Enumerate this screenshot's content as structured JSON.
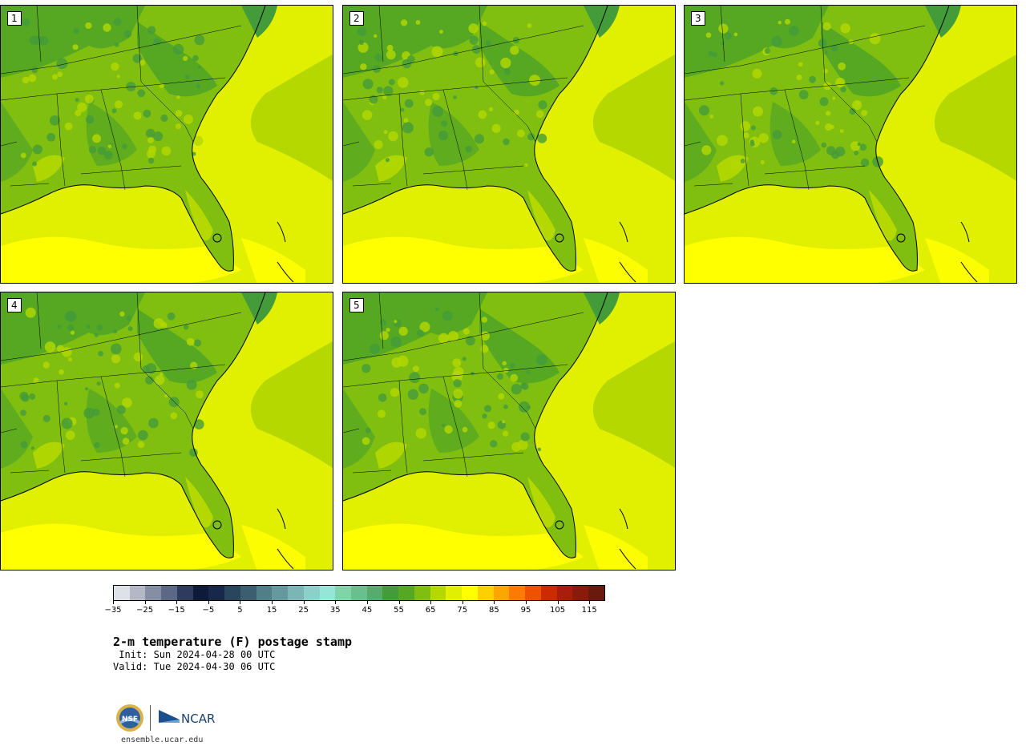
{
  "panels": [
    {
      "label": "1"
    },
    {
      "label": "2"
    },
    {
      "label": "3"
    },
    {
      "label": "4"
    },
    {
      "label": "5"
    }
  ],
  "colorbar": {
    "colors": [
      "#dde1e8",
      "#b3b7c6",
      "#868ea4",
      "#5c6885",
      "#2e3b5e",
      "#0e1a3a",
      "#17284a",
      "#2a455e",
      "#3c5f70",
      "#527e88",
      "#66999e",
      "#7cb5b5",
      "#8bd0c9",
      "#94e6d6",
      "#7fd4a8",
      "#69c08c",
      "#55ac6c",
      "#439b3a",
      "#56a823",
      "#80be10",
      "#b4d800",
      "#e0f000",
      "#ffff00",
      "#ffd000",
      "#ffa500",
      "#ff7a00",
      "#ee5200",
      "#cc2a00",
      "#a81e0a",
      "#8a1a0c",
      "#6a1a0c"
    ],
    "tick_labels": [
      "−35",
      "−25",
      "−15",
      "−5",
      "5",
      "15",
      "25",
      "35",
      "45",
      "55",
      "65",
      "75",
      "85",
      "95",
      "105",
      "115"
    ]
  },
  "title": "2-m temperature (F) postage stamp",
  "init": " Init: Sun 2024-04-28 00 UTC",
  "valid": "Valid: Tue 2024-04-30 06 UTC",
  "logos": {
    "nsf": "NSF",
    "ncar": "NCAR"
  },
  "site": "ensemble.ucar.edu"
}
